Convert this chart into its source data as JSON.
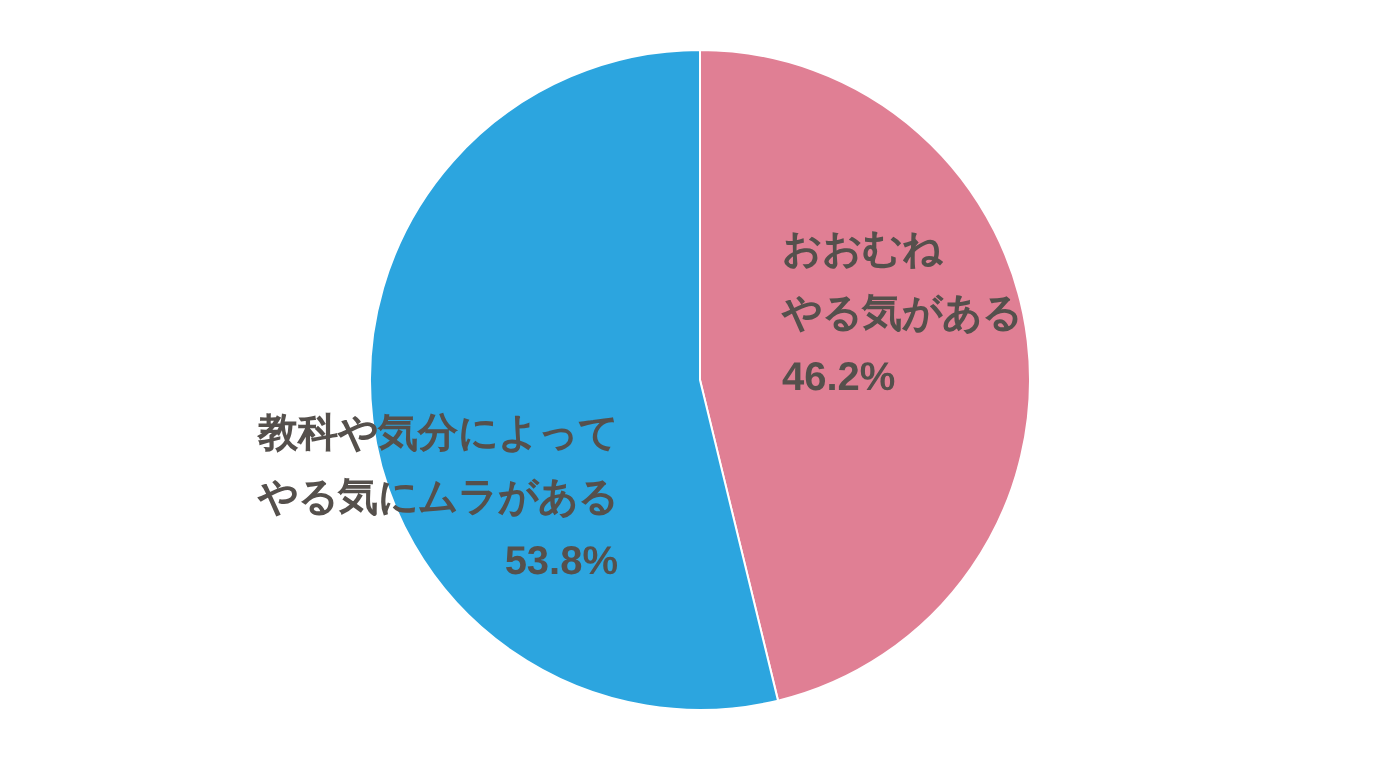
{
  "chart_data": {
    "type": "pie",
    "categories": [
      "おおむねやる気がある",
      "教科や気分によってやる気にムラがある"
    ],
    "values": [
      46.2,
      53.8
    ],
    "colors": [
      "#e07f94",
      "#2ca5df"
    ],
    "value_labels": [
      "46.2%",
      "53.8%"
    ]
  }
}
